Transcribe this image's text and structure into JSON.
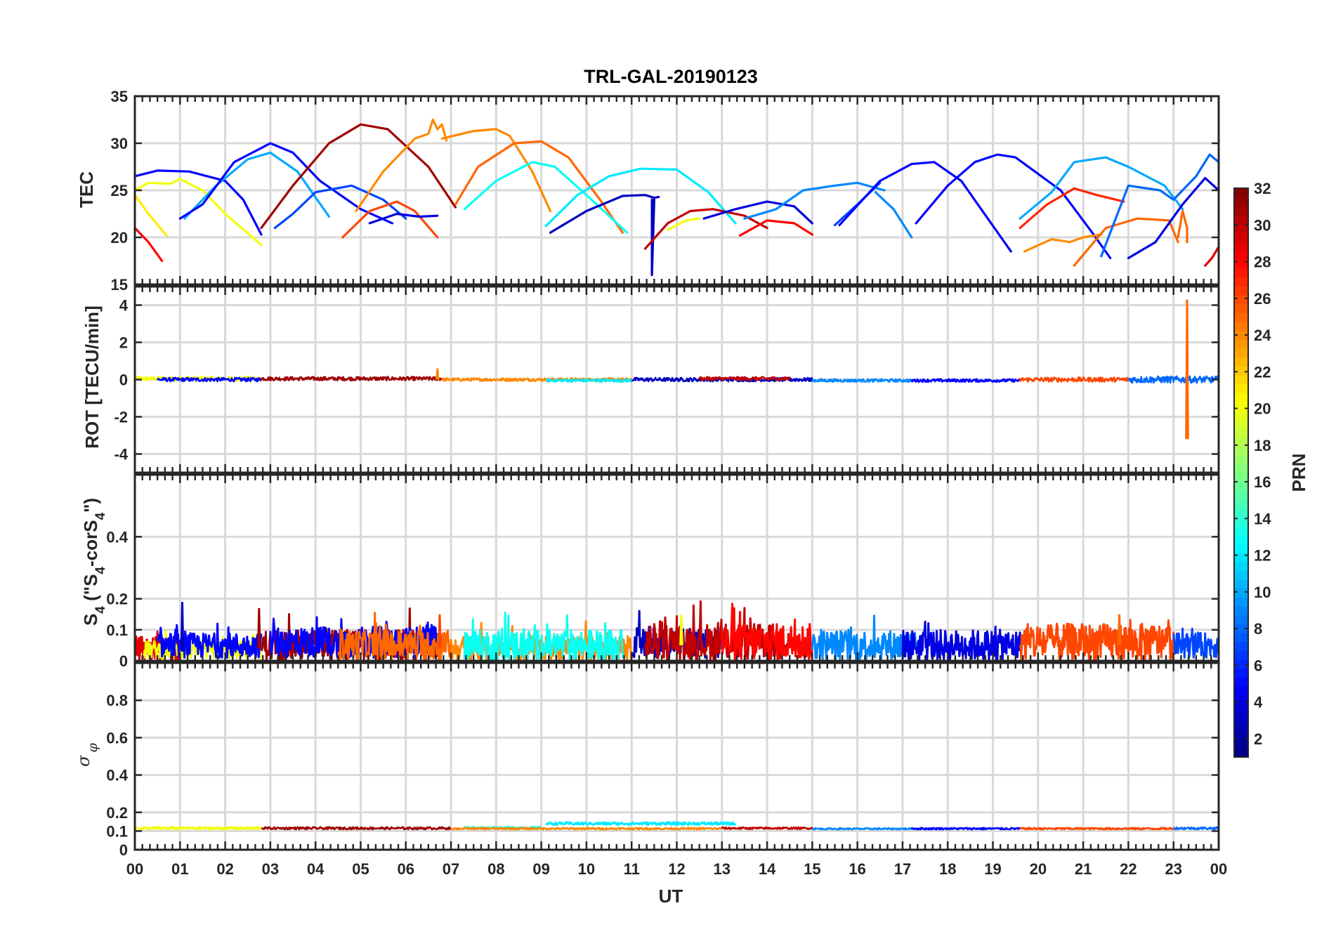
{
  "chart_data": {
    "type": "line",
    "title": "TRL-GAL-20190123",
    "xlabel": "UT",
    "xlim": [
      0,
      24
    ],
    "x_tick_labels": [
      "00",
      "01",
      "02",
      "03",
      "04",
      "05",
      "06",
      "07",
      "08",
      "09",
      "10",
      "11",
      "12",
      "13",
      "14",
      "15",
      "16",
      "17",
      "18",
      "19",
      "20",
      "21",
      "22",
      "23",
      "00"
    ],
    "colorbar": {
      "label": "PRN",
      "range": [
        1,
        32
      ],
      "ticks": [
        "2",
        "4",
        "6",
        "8",
        "10",
        "12",
        "14",
        "16",
        "18",
        "20",
        "22",
        "24",
        "26",
        "28",
        "30",
        "32"
      ],
      "colormap": "jet"
    },
    "panels": [
      {
        "id": "tec",
        "ylabel": "TEC",
        "ylim": [
          15,
          35
        ],
        "y_ticks": [
          15,
          20,
          25,
          30,
          35
        ],
        "y_tick_labels": [
          "15",
          "20",
          "25",
          "30",
          "35"
        ],
        "series": [
          {
            "prn": 28,
            "x": [
              0.0,
              0.3,
              0.6
            ],
            "y": [
              21.0,
              19.5,
              17.5
            ]
          },
          {
            "prn": 21,
            "x": [
              0.0,
              0.3,
              0.7
            ],
            "y": [
              24.5,
              22.5,
              20.2
            ]
          },
          {
            "prn": 20,
            "x": [
              0.0,
              0.3,
              0.8,
              1.0,
              1.5,
              2.0,
              2.8
            ],
            "y": [
              25.0,
              25.8,
              25.7,
              26.2,
              25.0,
              22.5,
              19.2
            ]
          },
          {
            "prn": 5,
            "x": [
              0.0,
              0.5,
              1.2,
              2.0,
              2.4,
              2.8
            ],
            "y": [
              26.5,
              27.1,
              27.0,
              26.0,
              24.0,
              20.3
            ]
          },
          {
            "prn": 10,
            "x": [
              1.1,
              1.8,
              2.5,
              3.0,
              3.6,
              4.3
            ],
            "y": [
              22.0,
              25.5,
              28.3,
              29.0,
              27.0,
              22.2
            ]
          },
          {
            "prn": 5,
            "x": [
              1.0,
              1.5,
              2.2,
              3.0,
              3.5,
              4.1,
              5.0,
              5.7
            ],
            "y": [
              22.0,
              23.5,
              28.0,
              30.0,
              29.0,
              26.0,
              23.0,
              21.5
            ]
          },
          {
            "prn": 7,
            "x": [
              3.1,
              3.5,
              4.0,
              4.8,
              5.5,
              6.0
            ],
            "y": [
              21.0,
              22.5,
              24.8,
              25.5,
              24.0,
              22.0
            ]
          },
          {
            "prn": 31,
            "x": [
              2.8,
              3.5,
              4.3,
              5.0,
              5.6,
              6.5,
              7.1
            ],
            "y": [
              21.0,
              25.5,
              30.0,
              32.0,
              31.5,
              27.5,
              23.2
            ]
          },
          {
            "prn": 26,
            "x": [
              4.6,
              5.2,
              5.8,
              6.2,
              6.7
            ],
            "y": [
              20.0,
              22.8,
              23.8,
              22.8,
              20.0
            ]
          },
          {
            "prn": 24,
            "x": [
              4.9,
              5.5,
              6.2,
              6.5,
              6.6,
              6.7,
              6.8,
              6.9
            ],
            "y": [
              22.8,
              27.0,
              30.5,
              31.0,
              32.5,
              31.5,
              32.0,
              30.3
            ]
          },
          {
            "prn": 4,
            "x": [
              5.2,
              5.8,
              6.3,
              6.7
            ],
            "y": [
              21.5,
              22.5,
              22.2,
              22.3
            ]
          },
          {
            "prn": 24,
            "x": [
              6.8,
              7.5,
              8.0,
              8.3,
              8.8,
              9.2
            ],
            "y": [
              30.5,
              31.3,
              31.5,
              30.8,
              27.0,
              22.8
            ]
          },
          {
            "prn": 25,
            "x": [
              7.1,
              7.6,
              8.4,
              9.0,
              9.6,
              10.3,
              10.8
            ],
            "y": [
              23.5,
              27.5,
              30.0,
              30.2,
              28.5,
              24.0,
              20.5
            ]
          },
          {
            "prn": 13,
            "x": [
              7.3,
              8.0,
              8.8,
              9.3,
              10.0,
              10.9
            ],
            "y": [
              23.0,
              26.0,
              28.0,
              27.5,
              24.5,
              20.5
            ]
          },
          {
            "prn": 12,
            "x": [
              9.1,
              9.8,
              10.5,
              11.2,
              12.0,
              12.7,
              13.3
            ],
            "y": [
              21.2,
              24.5,
              26.5,
              27.3,
              27.2,
              24.8,
              21.5
            ]
          },
          {
            "prn": 3,
            "x": [
              9.2,
              10.0,
              10.8,
              11.3,
              11.5,
              11.6
            ],
            "y": [
              20.5,
              22.8,
              24.4,
              24.5,
              24.2,
              24.3
            ]
          },
          {
            "prn": 3,
            "x": [
              11.45,
              11.45,
              11.5
            ],
            "y": [
              24.0,
              16.0,
              24.0
            ]
          },
          {
            "prn": 20,
            "x": [
              11.8,
              12.2,
              12.5
            ],
            "y": [
              20.8,
              21.8,
              22.0
            ]
          },
          {
            "prn": 30,
            "x": [
              11.3,
              11.8,
              12.3,
              12.8,
              13.5,
              14.0
            ],
            "y": [
              18.8,
              21.5,
              22.8,
              23.0,
              22.3,
              21.0
            ]
          },
          {
            "prn": 28,
            "x": [
              13.4,
              14.0,
              14.6,
              15.0
            ],
            "y": [
              20.2,
              21.8,
              21.5,
              20.3
            ]
          },
          {
            "prn": 4,
            "x": [
              12.6,
              13.3,
              14.0,
              14.6,
              15.0
            ],
            "y": [
              22.0,
              23.0,
              23.8,
              23.3,
              21.5
            ]
          },
          {
            "prn": 9,
            "x": [
              13.5,
              14.2,
              14.8,
              15.5,
              16.0,
              16.6
            ],
            "y": [
              22.0,
              23.0,
              25.0,
              25.5,
              25.8,
              25.0
            ]
          },
          {
            "prn": 7,
            "x": [
              15.5,
              16.0,
              16.5
            ],
            "y": [
              21.3,
              23.5,
              25.8
            ]
          },
          {
            "prn": 9,
            "x": [
              16.4,
              16.8,
              17.2
            ],
            "y": [
              24.8,
              23.0,
              20.0
            ]
          },
          {
            "prn": 5,
            "x": [
              15.6,
              16.5,
              17.2,
              17.7,
              18.3,
              19.4
            ],
            "y": [
              21.3,
              26.0,
              27.8,
              28.0,
              26.0,
              18.5
            ]
          },
          {
            "prn": 5,
            "x": [
              17.3,
              18.0,
              18.6,
              19.1,
              19.5,
              20.5,
              21.2,
              21.6
            ],
            "y": [
              21.5,
              25.5,
              28.0,
              28.8,
              28.5,
              25.0,
              20.5,
              17.8
            ]
          },
          {
            "prn": 10,
            "x": [
              19.6,
              20.3,
              20.8,
              21.5,
              22.0,
              22.8,
              23.2
            ],
            "y": [
              22.0,
              24.8,
              28.0,
              28.5,
              27.5,
              25.5,
              23.0
            ]
          },
          {
            "prn": 27,
            "x": [
              19.6,
              20.2,
              20.8,
              21.3,
              21.9
            ],
            "y": [
              21.0,
              23.5,
              25.2,
              24.5,
              23.8
            ]
          },
          {
            "prn": 24,
            "x": [
              19.7,
              20.3,
              20.7,
              21.0,
              21.4
            ],
            "y": [
              18.5,
              19.8,
              19.5,
              20.0,
              20.3
            ]
          },
          {
            "prn": 25,
            "x": [
              20.8,
              21.5,
              22.2,
              22.9,
              23.1
            ],
            "y": [
              17.0,
              21.0,
              22.0,
              21.8,
              19.5
            ]
          },
          {
            "prn": 25,
            "x": [
              23.1,
              23.2,
              23.3,
              23.3
            ],
            "y": [
              20.0,
              22.8,
              21.0,
              19.5
            ]
          },
          {
            "prn": 8,
            "x": [
              21.4,
              22.0,
              22.7,
              23.0,
              23.5,
              23.8,
              24.0
            ],
            "y": [
              18.0,
              25.5,
              25.0,
              24.0,
              26.5,
              28.8,
              28.0
            ]
          },
          {
            "prn": 4,
            "x": [
              22.0,
              22.6,
              23.2,
              23.7,
              24.0
            ],
            "y": [
              17.8,
              19.5,
              23.5,
              26.3,
              25.0
            ]
          },
          {
            "prn": 29,
            "x": [
              23.7,
              23.85,
              24.0
            ],
            "y": [
              17.0,
              17.8,
              19.0
            ]
          }
        ]
      },
      {
        "id": "rot",
        "ylabel": "ROT [TECU/min]",
        "ylim": [
          -5,
          5
        ],
        "y_ticks": [
          -4,
          -2,
          0,
          2,
          4
        ],
        "y_tick_labels": [
          "-4",
          "-2",
          "0",
          "2",
          "4"
        ],
        "noise_segments": [
          {
            "prn": 20,
            "x0": 0.0,
            "x1": 2.8,
            "base": 0.05,
            "amp": 0.12
          },
          {
            "prn": 5,
            "x0": 0.5,
            "x1": 2.8,
            "base": 0.0,
            "amp": 0.1
          },
          {
            "prn": 31,
            "x0": 2.8,
            "x1": 6.8,
            "base": 0.05,
            "amp": 0.1
          },
          {
            "prn": 24,
            "x0": 6.8,
            "x1": 11.0,
            "base": 0.0,
            "amp": 0.08
          },
          {
            "prn": 12,
            "x0": 9.1,
            "x1": 11.0,
            "base": -0.05,
            "amp": 0.08
          },
          {
            "prn": 3,
            "x0": 11.0,
            "x1": 15.0,
            "base": 0.0,
            "amp": 0.1
          },
          {
            "prn": 30,
            "x0": 12.5,
            "x1": 14.5,
            "base": 0.05,
            "amp": 0.1
          },
          {
            "prn": 9,
            "x0": 15.0,
            "x1": 17.2,
            "base": -0.05,
            "amp": 0.08
          },
          {
            "prn": 5,
            "x0": 17.2,
            "x1": 19.6,
            "base": -0.05,
            "amp": 0.08
          },
          {
            "prn": 26,
            "x0": 19.6,
            "x1": 22.0,
            "base": 0.0,
            "amp": 0.12
          },
          {
            "prn": 8,
            "x0": 22.0,
            "x1": 24.0,
            "base": 0.0,
            "amp": 0.18
          }
        ],
        "spikes": [
          {
            "prn": 25,
            "x": 23.3,
            "ymax": 4.3,
            "ymin": -3.2
          },
          {
            "prn": 24,
            "x": 6.7,
            "ymax": 0.6,
            "ymin": 0.0
          }
        ]
      },
      {
        "id": "s4",
        "ylabel_main": "S",
        "ylabel_sub1": "4",
        "ylabel_mid": " (\"S",
        "ylabel_sub2": "4",
        "ylabel_mid2": "-corS",
        "ylabel_sub3": "4",
        "ylabel_end": "\")",
        "ylim": [
          0,
          0.6
        ],
        "y_ticks": [
          0,
          0.1,
          0.2,
          0.4
        ],
        "y_tick_labels": [
          "0",
          "0.1",
          "0.2",
          "0.4"
        ],
        "noise_segments": [
          {
            "prn": 29,
            "x0": 0.0,
            "x1": 1.0,
            "base": 0.04,
            "amp": 0.04
          },
          {
            "prn": 20,
            "x0": 0.2,
            "x1": 2.8,
            "base": 0.035,
            "amp": 0.03
          },
          {
            "prn": 5,
            "x0": 0.5,
            "x1": 2.8,
            "base": 0.05,
            "amp": 0.04
          },
          {
            "prn": 31,
            "x0": 2.8,
            "x1": 6.8,
            "base": 0.05,
            "amp": 0.05
          },
          {
            "prn": 5,
            "x0": 3.0,
            "x1": 6.7,
            "base": 0.06,
            "amp": 0.05
          },
          {
            "prn": 25,
            "x0": 4.5,
            "x1": 7.0,
            "base": 0.05,
            "amp": 0.05
          },
          {
            "prn": 24,
            "x0": 7.0,
            "x1": 11.0,
            "base": 0.04,
            "amp": 0.04
          },
          {
            "prn": 13,
            "x0": 7.3,
            "x1": 10.8,
            "base": 0.05,
            "amp": 0.05
          },
          {
            "prn": 3,
            "x0": 11.0,
            "x1": 13.0,
            "base": 0.06,
            "amp": 0.05
          },
          {
            "prn": 30,
            "x0": 11.3,
            "x1": 14.5,
            "base": 0.06,
            "amp": 0.06
          },
          {
            "prn": 28,
            "x0": 13.0,
            "x1": 15.0,
            "base": 0.06,
            "amp": 0.06
          },
          {
            "prn": 9,
            "x0": 15.0,
            "x1": 17.3,
            "base": 0.05,
            "amp": 0.05
          },
          {
            "prn": 4,
            "x0": 17.0,
            "x1": 19.6,
            "base": 0.05,
            "amp": 0.05
          },
          {
            "prn": 26,
            "x0": 19.6,
            "x1": 23.0,
            "base": 0.06,
            "amp": 0.06
          },
          {
            "prn": 7,
            "x0": 23.0,
            "x1": 24.0,
            "base": 0.05,
            "amp": 0.04
          }
        ],
        "spikes": [
          {
            "prn": 3,
            "x": 1.05,
            "ymax": 0.19,
            "ymin": 0.03
          },
          {
            "prn": 31,
            "x": 2.75,
            "ymax": 0.17,
            "ymin": 0.04
          },
          {
            "prn": 26,
            "x": 6.75,
            "ymax": 0.15,
            "ymin": 0.04
          },
          {
            "prn": 20,
            "x": 12.1,
            "ymax": 0.15,
            "ymin": 0.05
          },
          {
            "prn": 28,
            "x": 13.4,
            "ymax": 0.16,
            "ymin": 0.05
          },
          {
            "prn": 25,
            "x": 21.8,
            "ymax": 0.15,
            "ymin": 0.05
          }
        ]
      },
      {
        "id": "sigphi",
        "ylabel": "σ",
        "ylabel_sub": "φ",
        "ylim": [
          0,
          1
        ],
        "y_ticks": [
          0,
          0.1,
          0.2,
          0.4,
          0.6,
          0.8
        ],
        "y_tick_labels": [
          "0",
          "0.1",
          "0.2",
          "0.4",
          "0.6",
          "0.8"
        ],
        "noise_segments": [
          {
            "prn": 20,
            "x0": 0.0,
            "x1": 2.8,
            "base": 0.115,
            "amp": 0.008
          },
          {
            "prn": 31,
            "x0": 2.8,
            "x1": 7.0,
            "base": 0.115,
            "amp": 0.006
          },
          {
            "prn": 13,
            "x0": 7.3,
            "x1": 9.0,
            "base": 0.118,
            "amp": 0.005
          },
          {
            "prn": 12,
            "x0": 9.1,
            "x1": 13.3,
            "base": 0.14,
            "amp": 0.008
          },
          {
            "prn": 24,
            "x0": 7.0,
            "x1": 13.0,
            "base": 0.113,
            "amp": 0.005
          },
          {
            "prn": 30,
            "x0": 13.0,
            "x1": 15.0,
            "base": 0.115,
            "amp": 0.005
          },
          {
            "prn": 9,
            "x0": 15.0,
            "x1": 17.2,
            "base": 0.112,
            "amp": 0.004
          },
          {
            "prn": 5,
            "x0": 17.2,
            "x1": 19.6,
            "base": 0.113,
            "amp": 0.005
          },
          {
            "prn": 26,
            "x0": 19.6,
            "x1": 23.0,
            "base": 0.113,
            "amp": 0.005
          },
          {
            "prn": 8,
            "x0": 23.0,
            "x1": 24.0,
            "base": 0.115,
            "amp": 0.006
          }
        ]
      }
    ]
  }
}
